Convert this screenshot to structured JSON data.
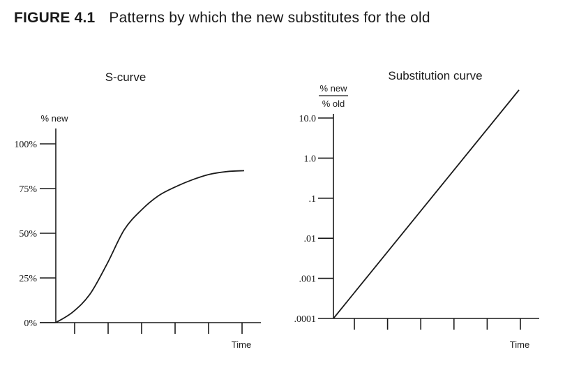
{
  "figure": {
    "label": "FIGURE 4.1",
    "caption": "Patterns by which the new substitutes for the old"
  },
  "chart_data": [
    {
      "type": "line",
      "title": "S-curve",
      "ylabel": "% new",
      "xlabel": "Time",
      "y_ticks": [
        0,
        25,
        50,
        75,
        100
      ],
      "y_tick_labels": [
        "0%",
        "25%",
        "50%",
        "75%",
        "100%"
      ],
      "ylim": [
        0,
        100
      ],
      "x_tick_count": 6,
      "x": [
        0,
        0.5,
        1,
        1.5,
        2,
        2.5,
        3,
        3.5,
        4,
        4.5,
        5,
        5.5
      ],
      "series": [
        {
          "values": [
            0,
            6,
            16,
            33,
            52,
            63,
            71,
            76,
            80,
            83,
            84.5,
            85
          ]
        }
      ]
    },
    {
      "type": "line",
      "title": "Substitution curve",
      "ylabel_numerator": "% new",
      "ylabel_denominator": "% old",
      "xlabel": "Time",
      "y_scale": "log",
      "y_ticks": [
        0.0001,
        0.001,
        0.01,
        0.1,
        1,
        10
      ],
      "y_tick_labels": [
        ".0001",
        ".001",
        ".01",
        ".1",
        "1.0",
        "10.0"
      ],
      "x_tick_count": 6,
      "x": [
        0,
        5.6
      ],
      "series": [
        {
          "values": [
            0.0001,
            50
          ]
        }
      ]
    }
  ]
}
